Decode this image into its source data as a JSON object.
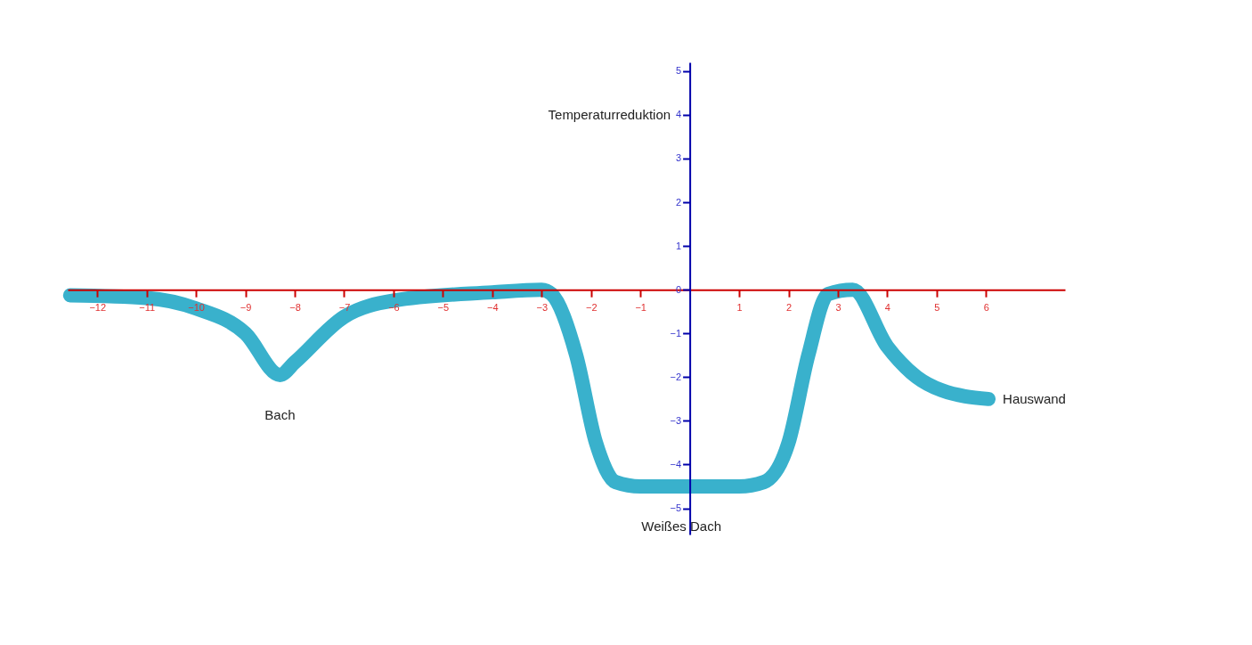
{
  "chart_data": {
    "type": "line",
    "ylabel": "Temperaturreduktion",
    "x": [
      -12.55,
      -11,
      -10,
      -9,
      -8.3,
      -8,
      -7,
      -6,
      -4,
      -3,
      -2.8,
      -2.3,
      -1.9,
      -1.5,
      -1,
      1,
      1.5,
      2,
      2.4,
      2.8,
      3.3,
      4,
      4.6,
      5.1,
      6.05
    ],
    "series": [
      {
        "color": "#39b1cc",
        "values": [
          -0.13,
          -0.19,
          -0.43,
          -1.0,
          -1.95,
          -1.66,
          -0.62,
          -0.25,
          -0.06,
          0,
          -0.1,
          -1.5,
          -3.5,
          -4.4,
          -4.5,
          -4.5,
          -4.4,
          -3.5,
          -1.5,
          -0.1,
          0,
          -1.3,
          -2.0,
          -2.3,
          -2.5
        ]
      }
    ],
    "xlim": [
      -12.6,
      7.6
    ],
    "ylim": [
      -5.6,
      5.2
    ],
    "xticks": [
      -12,
      -11,
      -10,
      -9,
      -8,
      -7,
      -6,
      -5,
      -4,
      -3,
      -2,
      -1,
      1,
      2,
      3,
      4,
      5,
      6
    ],
    "yticks": [
      -5,
      -4,
      -3,
      -2,
      -1,
      0,
      1,
      2,
      3,
      4,
      5
    ],
    "grid": false,
    "line_style": "solid",
    "annotations": [
      {
        "text": "Bach",
        "x": -8.3,
        "y": -1.95
      },
      {
        "text": "Weißes Dach",
        "x": 1,
        "y": -4.5
      },
      {
        "text": "Hauswand",
        "x": 6.05,
        "y": -2.5
      }
    ]
  }
}
